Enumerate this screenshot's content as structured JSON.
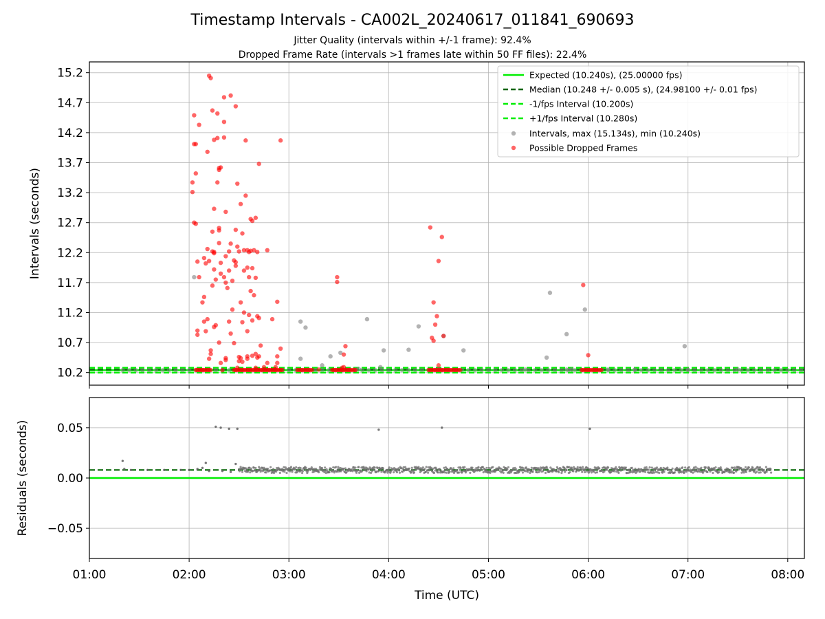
{
  "chart_data": [
    {
      "type": "scatter",
      "title": "Timestamp Intervals - CA002L_20240617_011841_690693",
      "subtitle_lines": [
        "Jitter Quality (intervals within +/-1 frame): 92.4%",
        "Dropped Frame Rate (intervals >1 frames late within 50 FF files): 22.4%"
      ],
      "xlabel": "",
      "ylabel": "Intervals (seconds)",
      "x_is_time": true,
      "xlim": [
        "01:00",
        "08:10"
      ],
      "xticks": [
        "01:00",
        "02:00",
        "03:00",
        "04:00",
        "05:00",
        "06:00",
        "07:00",
        "08:00"
      ],
      "ylim": [
        9.99,
        15.38
      ],
      "yticks": [
        "10.2",
        "10.7",
        "11.2",
        "11.7",
        "12.2",
        "12.7",
        "13.2",
        "13.7",
        "14.2",
        "14.7",
        "15.2"
      ],
      "grid": true,
      "legend_position": "top-right",
      "legend": [
        "Expected (10.240s), (25.00000 fps)",
        "Median (10.248 +/- 0.005 s), (24.98100 +/- 0.01 fps)",
        "-1/fps Interval (10.200s)",
        "+1/fps Interval (10.280s)",
        "Intervals, max (15.134s), min (10.240s)",
        "Possible Dropped Frames"
      ],
      "lines": {
        "expected": 10.24,
        "median": 10.248,
        "minus_fps": 10.2,
        "plus_fps": 10.28
      },
      "colors": {
        "expected": "#00ee00",
        "median": "#006400",
        "fps_bounds": "#00ee00",
        "intervals": "#808080",
        "dropped": "#ff0000"
      },
      "interval_points": [
        [
          "02:03",
          11.79
        ],
        [
          "03:07",
          10.43
        ],
        [
          "03:07",
          11.05
        ],
        [
          "03:10",
          10.95
        ],
        [
          "03:20",
          10.32
        ],
        [
          "03:25",
          10.47
        ],
        [
          "03:31",
          10.53
        ],
        [
          "03:40",
          10.25
        ],
        [
          "03:42",
          10.26
        ],
        [
          "03:47",
          11.09
        ],
        [
          "03:57",
          10.57
        ],
        [
          "04:12",
          10.58
        ],
        [
          "04:18",
          10.97
        ],
        [
          "04:30",
          10.25
        ],
        [
          "04:33",
          10.81
        ],
        [
          "04:45",
          10.57
        ],
        [
          "05:22",
          10.25
        ],
        [
          "05:35",
          10.45
        ],
        [
          "05:47",
          10.25
        ],
        [
          "05:50",
          10.25
        ],
        [
          "06:12",
          10.25
        ],
        [
          "06:28",
          10.25
        ],
        [
          "07:00",
          10.25
        ],
        [
          "07:30",
          10.25
        ],
        [
          "05:37",
          11.53
        ],
        [
          "05:47",
          10.84
        ],
        [
          "05:58",
          11.25
        ],
        [
          "06:58",
          10.64
        ],
        [
          "03:55",
          10.29
        ]
      ],
      "dropped_points": [
        [
          "02:02",
          13.37
        ],
        [
          "02:02",
          13.21
        ],
        [
          "02:03",
          14.49
        ],
        [
          "02:03",
          14.01
        ],
        [
          "02:03",
          12.7
        ],
        [
          "02:04",
          12.68
        ],
        [
          "02:04",
          14.01
        ],
        [
          "02:04",
          13.52
        ],
        [
          "02:05",
          10.9
        ],
        [
          "02:05",
          10.83
        ],
        [
          "02:05",
          12.05
        ],
        [
          "02:06",
          11.79
        ],
        [
          "02:06",
          14.33
        ],
        [
          "02:08",
          11.37
        ],
        [
          "02:09",
          11.46
        ],
        [
          "02:09",
          11.05
        ],
        [
          "02:09",
          12.11
        ],
        [
          "02:10",
          12.02
        ],
        [
          "02:10",
          10.89
        ],
        [
          "02:11",
          13.88
        ],
        [
          "02:11",
          12.26
        ],
        [
          "02:11",
          11.09
        ],
        [
          "02:12",
          12.06
        ],
        [
          "02:12",
          15.15
        ],
        [
          "02:12",
          10.43
        ],
        [
          "02:13",
          15.11
        ],
        [
          "02:13",
          10.51
        ],
        [
          "02:13",
          10.57
        ],
        [
          "02:14",
          12.22
        ],
        [
          "02:14",
          11.65
        ],
        [
          "02:14",
          12.55
        ],
        [
          "02:14",
          14.57
        ],
        [
          "02:15",
          11.92
        ],
        [
          "02:15",
          12.19
        ],
        [
          "02:15",
          12.21
        ],
        [
          "02:15",
          12.93
        ],
        [
          "02:15",
          10.96
        ],
        [
          "02:15",
          14.08
        ],
        [
          "02:16",
          11.75
        ],
        [
          "02:16",
          10.99
        ],
        [
          "02:17",
          13.37
        ],
        [
          "02:17",
          14.52
        ],
        [
          "02:17",
          14.11
        ],
        [
          "02:18",
          12.61
        ],
        [
          "02:18",
          12.36
        ],
        [
          "02:18",
          12.57
        ],
        [
          "02:18",
          10.7
        ],
        [
          "02:18",
          13.61
        ],
        [
          "02:18",
          13.58
        ],
        [
          "02:19",
          12.03
        ],
        [
          "02:19",
          11.85
        ],
        [
          "02:19",
          10.36
        ],
        [
          "02:19",
          13.62
        ],
        [
          "02:20",
          10.24
        ],
        [
          "02:21",
          14.79
        ],
        [
          "02:21",
          14.12
        ],
        [
          "02:21",
          11.79
        ],
        [
          "02:21",
          14.38
        ],
        [
          "02:22",
          12.14
        ],
        [
          "02:22",
          11.7
        ],
        [
          "02:22",
          12.88
        ],
        [
          "02:22",
          10.44
        ],
        [
          "02:22",
          10.41
        ],
        [
          "02:23",
          11.61
        ],
        [
          "02:24",
          11.9
        ],
        [
          "02:24",
          11.05
        ],
        [
          "02:24",
          12.22
        ],
        [
          "02:25",
          12.35
        ],
        [
          "02:25",
          10.85
        ],
        [
          "02:25",
          14.82
        ],
        [
          "02:26",
          11.73
        ],
        [
          "02:26",
          11.25
        ],
        [
          "02:27",
          12.07
        ],
        [
          "02:27",
          10.69
        ],
        [
          "02:28",
          12.04
        ],
        [
          "02:28",
          14.64
        ],
        [
          "02:28",
          11.98
        ],
        [
          "02:28",
          12.58
        ],
        [
          "02:29",
          10.28
        ],
        [
          "02:29",
          12.3
        ],
        [
          "02:29",
          13.35
        ],
        [
          "02:30",
          10.46
        ],
        [
          "02:30",
          10.39
        ],
        [
          "02:30",
          12.22
        ],
        [
          "02:31",
          10.44
        ],
        [
          "02:31",
          13.01
        ],
        [
          "02:31",
          11.37
        ],
        [
          "02:32",
          10.38
        ],
        [
          "02:32",
          12.52
        ],
        [
          "02:32",
          11.04
        ],
        [
          "02:33",
          12.24
        ],
        [
          "02:33",
          11.9
        ],
        [
          "02:33",
          11.2
        ],
        [
          "02:34",
          14.07
        ],
        [
          "02:34",
          13.15
        ],
        [
          "02:35",
          10.89
        ],
        [
          "02:35",
          11.95
        ],
        [
          "02:35",
          12.24
        ],
        [
          "02:35",
          10.47
        ],
        [
          "02:35",
          10.43
        ],
        [
          "02:36",
          11.79
        ],
        [
          "02:36",
          12.21
        ],
        [
          "02:36",
          11.16
        ],
        [
          "02:37",
          12.23
        ],
        [
          "02:37",
          11.56
        ],
        [
          "02:37",
          12.76
        ],
        [
          "02:38",
          12.73
        ],
        [
          "02:38",
          10.48
        ],
        [
          "02:38",
          11.94
        ],
        [
          "02:38",
          11.07
        ],
        [
          "02:39",
          11.49
        ],
        [
          "02:39",
          12.24
        ],
        [
          "02:40",
          10.51
        ],
        [
          "02:40",
          12.78
        ],
        [
          "02:40",
          11.78
        ],
        [
          "02:40",
          10.28
        ],
        [
          "02:41",
          11.14
        ],
        [
          "02:41",
          10.45
        ],
        [
          "02:41",
          12.21
        ],
        [
          "02:42",
          13.68
        ],
        [
          "02:42",
          11.11
        ],
        [
          "02:42",
          10.47
        ],
        [
          "02:43",
          10.65
        ],
        [
          "02:45",
          10.29
        ],
        [
          "02:47",
          10.36
        ],
        [
          "02:47",
          12.24
        ],
        [
          "02:50",
          11.09
        ],
        [
          "02:52",
          10.29
        ],
        [
          "02:53",
          10.47
        ],
        [
          "02:53",
          11.38
        ],
        [
          "02:53",
          10.36
        ],
        [
          "02:55",
          10.6
        ],
        [
          "02:55",
          14.07
        ],
        [
          "03:18",
          10.25
        ],
        [
          "03:29",
          11.79
        ],
        [
          "03:29",
          11.71
        ],
        [
          "03:32",
          10.28
        ],
        [
          "03:33",
          10.29
        ],
        [
          "03:34",
          10.64
        ],
        [
          "03:33",
          10.5
        ],
        [
          "04:25",
          12.62
        ],
        [
          "04:26",
          10.78
        ],
        [
          "04:27",
          10.73
        ],
        [
          "04:27",
          11.37
        ],
        [
          "04:28",
          11.0
        ],
        [
          "04:29",
          11.14
        ],
        [
          "04:30",
          12.06
        ],
        [
          "04:32",
          12.46
        ],
        [
          "04:33",
          10.81
        ],
        [
          "04:30",
          10.32
        ],
        [
          "05:57",
          11.66
        ],
        [
          "06:00",
          10.49
        ]
      ],
      "dropped_baseline_clusters": [
        [
          "02:04",
          "02:13"
        ],
        [
          "02:27",
          "02:56"
        ],
        [
          "03:05",
          "03:14"
        ],
        [
          "03:26",
          "03:40"
        ],
        [
          "04:24",
          "04:43"
        ],
        [
          "05:56",
          "06:08"
        ]
      ]
    },
    {
      "type": "scatter",
      "title": "",
      "xlabel": "Time (UTC)",
      "ylabel": "Residuals (seconds)",
      "xlim": [
        "01:00",
        "08:10"
      ],
      "xticks": [
        "01:00",
        "02:00",
        "03:00",
        "04:00",
        "05:00",
        "06:00",
        "07:00",
        "08:00"
      ],
      "ylim": [
        -0.08,
        0.08
      ],
      "yticks": [
        "0.05",
        "0.00",
        "−0.05"
      ],
      "grid": true,
      "lines": {
        "zero": 0.0,
        "median_residual": 0.008
      },
      "residual_band": {
        "start": "02:30",
        "end": "07:50",
        "center": 0.008,
        "spread": 0.003
      },
      "residual_points": [
        [
          "01:20",
          0.017
        ],
        [
          "01:21",
          0.009
        ],
        [
          "01:25",
          0.008
        ],
        [
          "01:35",
          0.008
        ],
        [
          "01:45",
          0.008
        ],
        [
          "01:55",
          0.008
        ],
        [
          "02:00",
          0.008
        ],
        [
          "02:05",
          0.009
        ],
        [
          "02:08",
          0.01
        ],
        [
          "02:10",
          0.015
        ],
        [
          "02:12",
          0.007
        ],
        [
          "02:20",
          0.007
        ],
        [
          "02:25",
          0.006
        ],
        [
          "02:28",
          0.014
        ],
        [
          "02:16",
          0.051
        ],
        [
          "02:19",
          0.05
        ],
        [
          "02:24",
          0.049
        ],
        [
          "02:29",
          0.049
        ],
        [
          "03:54",
          0.048
        ],
        [
          "04:32",
          0.05
        ],
        [
          "06:01",
          0.049
        ]
      ]
    }
  ]
}
